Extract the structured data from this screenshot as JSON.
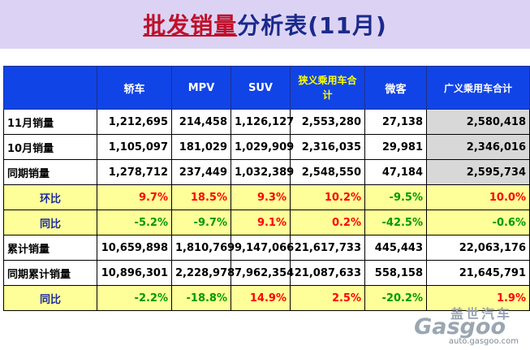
{
  "title": {
    "part1": "批发销量",
    "part2": "分析表(11月)"
  },
  "table": {
    "headers": [
      "",
      "轿车",
      "MPV",
      "SUV",
      "狭义乘用车合计",
      "微客",
      "广义乘用车合计"
    ],
    "rows": [
      {
        "label": "11月销量",
        "cells": [
          "1,212,695",
          "214,458",
          "1,126,127",
          "2,553,280",
          "27,138",
          "2,580,418"
        ]
      },
      {
        "label": "10月销量",
        "cells": [
          "1,105,097",
          "181,029",
          "1,029,909",
          "2,316,035",
          "29,981",
          "2,346,016"
        ]
      },
      {
        "label": "同期销量",
        "cells": [
          "1,278,712",
          "237,449",
          "1,032,389",
          "2,548,550",
          "47,184",
          "2,595,734"
        ]
      },
      {
        "label": "环比",
        "cells": [
          "9.7%",
          "18.5%",
          "9.3%",
          "10.2%",
          "-9.5%",
          "10.0%"
        ]
      },
      {
        "label": "同比",
        "cells": [
          "-5.2%",
          "-9.7%",
          "9.1%",
          "0.2%",
          "-42.5%",
          "-0.6%"
        ]
      },
      {
        "label": "累计销量",
        "cells": [
          "10,659,898",
          "1,810,769",
          "9,147,066",
          "21,617,733",
          "445,443",
          "22,063,176"
        ]
      },
      {
        "label": "同期累计销量",
        "cells": [
          "10,896,301",
          "2,228,978",
          "7,962,354",
          "21,087,633",
          "558,158",
          "21,645,791"
        ]
      },
      {
        "label": "同比",
        "cells": [
          "-2.2%",
          "-18.8%",
          "14.9%",
          "2.5%",
          "-20.2%",
          "1.9%"
        ]
      }
    ]
  },
  "watermark": {
    "cn": "盖世汽车",
    "logo": "Gasgoo",
    "url": "auto.gasgoo.com"
  },
  "colors": {
    "header_bg": "#1144e6",
    "highlight_row": "#ffff99",
    "positive": "#ff0000",
    "negative": "#009900",
    "gray_cell": "#d8d8d8"
  }
}
